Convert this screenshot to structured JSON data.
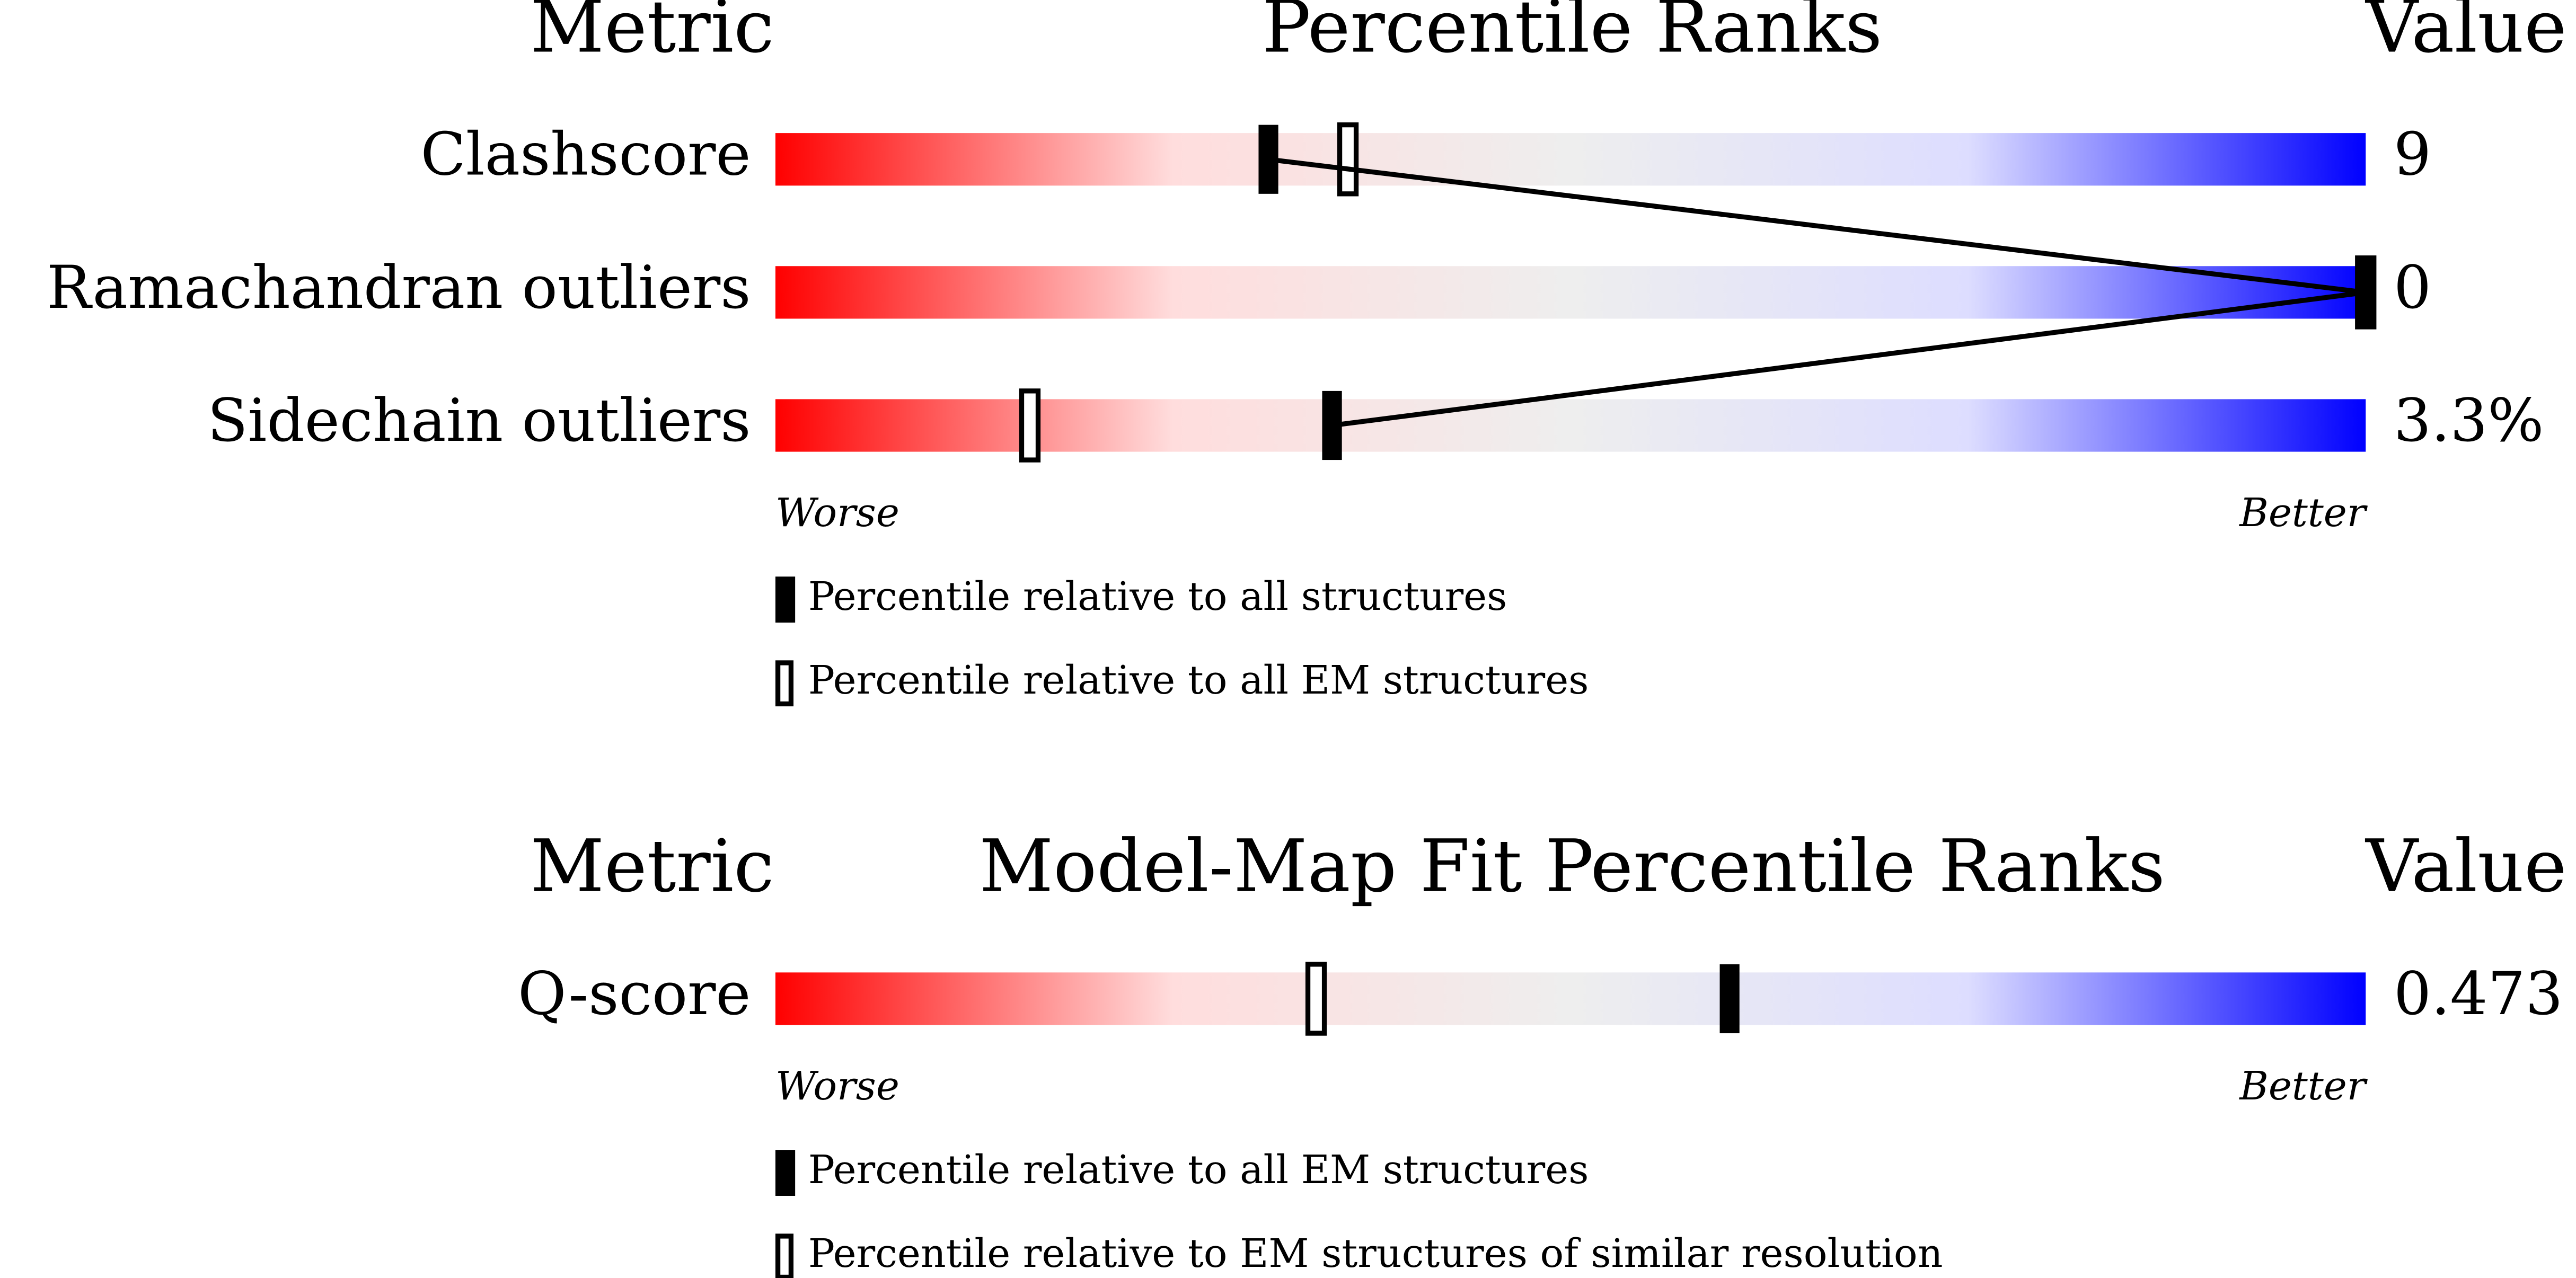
{
  "chart_data": [
    {
      "type": "slider",
      "headers": {
        "metric": "Metric",
        "title": "Percentile Ranks",
        "value": "Value"
      },
      "metrics": [
        {
          "name": "Clashscore",
          "value": "9",
          "percentiles": [
            31,
            36
          ]
        },
        {
          "name": "Ramachandran outliers",
          "value": "0",
          "percentiles": [
            100,
            100
          ]
        },
        {
          "name": "Sidechain outliers",
          "value": "3.3%",
          "percentiles": [
            35,
            16
          ]
        }
      ],
      "xlim": [
        0,
        100
      ],
      "worse": "Worse",
      "better": "Better",
      "legend": [
        "Percentile relative to all structures",
        "Percentile relative to all EM structures"
      ],
      "connect": true,
      "colors": [
        "#ff0000",
        "#ffdddd",
        "#eeeeee",
        "#ddddff",
        "#0000ff"
      ]
    },
    {
      "type": "slider",
      "headers": {
        "metric": "Metric",
        "title": "Model-Map Fit Percentile Ranks",
        "value": "Value"
      },
      "metrics": [
        {
          "name": "Q-score",
          "value": "0.473",
          "percentiles": [
            60,
            34
          ]
        }
      ],
      "xlim": [
        0,
        100
      ],
      "worse": "Worse",
      "better": "Better",
      "legend": [
        "Percentile relative to all EM structures",
        "Percentile relative to EM structures of similar resolution"
      ],
      "connect": false,
      "colors": [
        "#ff0000",
        "#ffdddd",
        "#eeeeee",
        "#ddddff",
        "#0000ff"
      ]
    }
  ]
}
